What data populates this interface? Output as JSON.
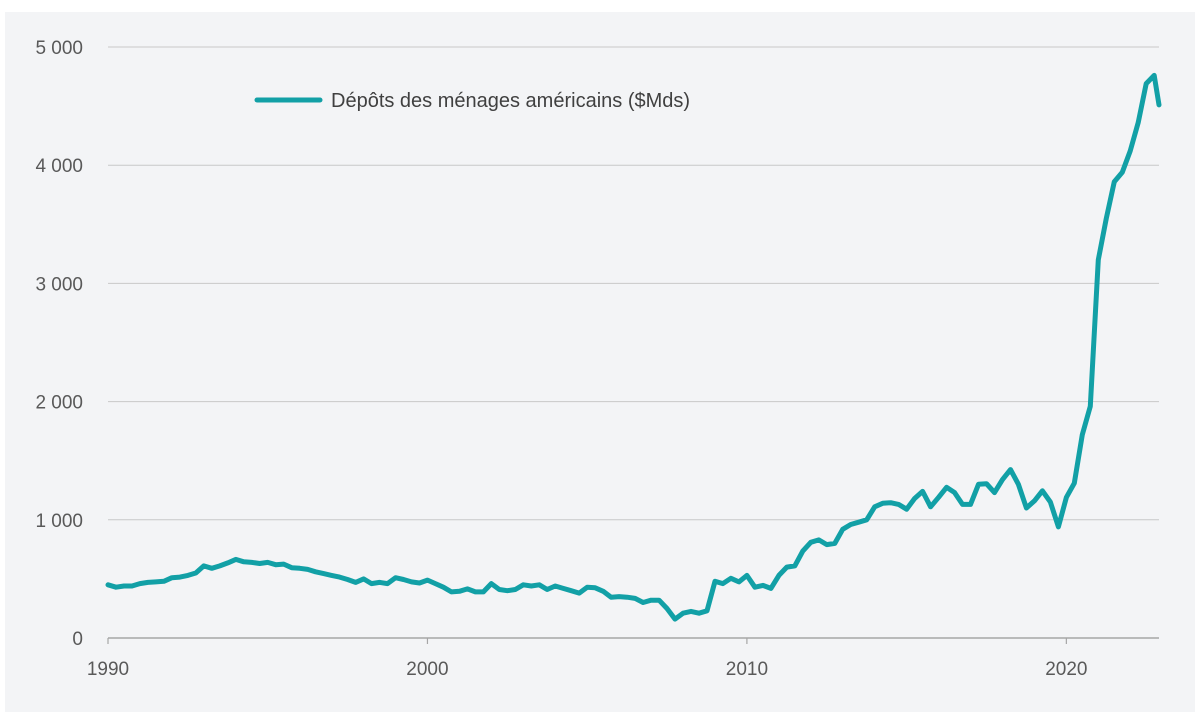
{
  "chart_data": {
    "type": "line",
    "title": "",
    "xlabel": "",
    "ylabel": "",
    "xlim": [
      1990,
      2022.9
    ],
    "ylim": [
      0,
      5000
    ],
    "grid": true,
    "legend": "top-left",
    "colors": {
      "series": "#12a0a6",
      "grid": "#c8c8c8",
      "axis": "#a6a6a6",
      "background": "#f3f4f6"
    },
    "x_ticks": [
      1990,
      2000,
      2010,
      2020
    ],
    "x_tick_labels": [
      "1990",
      "2000",
      "2010",
      "2020"
    ],
    "y_ticks": [
      0,
      1000,
      2000,
      3000,
      4000,
      5000
    ],
    "y_tick_labels": [
      "0",
      "1 000",
      "2 000",
      "3 000",
      "4 000",
      "5 000"
    ],
    "series": [
      {
        "name": "Dépôts des ménages américains ($Mds)",
        "x": [
          1990.0,
          1990.25,
          1990.5,
          1990.75,
          1991.0,
          1991.25,
          1991.5,
          1991.75,
          1992.0,
          1992.25,
          1992.5,
          1992.75,
          1993.0,
          1993.25,
          1993.5,
          1993.75,
          1994.0,
          1994.25,
          1994.5,
          1994.75,
          1995.0,
          1995.25,
          1995.5,
          1995.75,
          1996.0,
          1996.25,
          1996.5,
          1996.75,
          1997.0,
          1997.25,
          1997.5,
          1997.75,
          1998.0,
          1998.25,
          1998.5,
          1998.75,
          1999.0,
          1999.25,
          1999.5,
          1999.75,
          2000.0,
          2000.25,
          2000.5,
          2000.75,
          2001.0,
          2001.25,
          2001.5,
          2001.75,
          2002.0,
          2002.25,
          2002.5,
          2002.75,
          2003.0,
          2003.25,
          2003.5,
          2003.75,
          2004.0,
          2004.25,
          2004.5,
          2004.75,
          2005.0,
          2005.25,
          2005.5,
          2005.75,
          2006.0,
          2006.25,
          2006.5,
          2006.75,
          2007.0,
          2007.25,
          2007.5,
          2007.75,
          2008.0,
          2008.25,
          2008.5,
          2008.75,
          2009.0,
          2009.25,
          2009.5,
          2009.75,
          2010.0,
          2010.25,
          2010.5,
          2010.75,
          2011.0,
          2011.25,
          2011.5,
          2011.75,
          2012.0,
          2012.25,
          2012.5,
          2012.75,
          2013.0,
          2013.25,
          2013.5,
          2013.75,
          2014.0,
          2014.25,
          2014.5,
          2014.75,
          2015.0,
          2015.25,
          2015.5,
          2015.75,
          2016.0,
          2016.25,
          2016.5,
          2016.75,
          2017.0,
          2017.25,
          2017.5,
          2017.75,
          2018.0,
          2018.25,
          2018.5,
          2018.75,
          2019.0,
          2019.25,
          2019.5,
          2019.75,
          2020.0,
          2020.25,
          2020.5,
          2020.75,
          2021.0,
          2021.25,
          2021.5,
          2021.75,
          2022.0,
          2022.25,
          2022.5,
          2022.75,
          2022.9
        ],
        "values": [
          450,
          430,
          440,
          440,
          460,
          470,
          475,
          480,
          510,
          515,
          530,
          550,
          610,
          590,
          610,
          635,
          665,
          645,
          640,
          630,
          640,
          620,
          625,
          595,
          590,
          580,
          560,
          545,
          530,
          515,
          495,
          470,
          500,
          460,
          470,
          460,
          510,
          495,
          475,
          465,
          490,
          460,
          430,
          390,
          395,
          415,
          390,
          390,
          460,
          410,
          400,
          410,
          450,
          440,
          450,
          410,
          440,
          420,
          400,
          380,
          430,
          425,
          395,
          345,
          350,
          345,
          335,
          300,
          320,
          320,
          250,
          160,
          210,
          225,
          210,
          230,
          480,
          460,
          505,
          475,
          530,
          430,
          445,
          420,
          530,
          600,
          610,
          735,
          810,
          830,
          790,
          800,
          920,
          960,
          980,
          1000,
          1110,
          1140,
          1145,
          1130,
          1090,
          1180,
          1240,
          1110,
          1190,
          1275,
          1230,
          1130,
          1130,
          1300,
          1305,
          1230,
          1340,
          1425,
          1300,
          1100,
          1160,
          1245,
          1150,
          940,
          1190,
          1310,
          1720,
          1960,
          3200,
          3550,
          3860,
          3940,
          4120,
          4360,
          4690,
          4760,
          4510
        ]
      }
    ]
  }
}
